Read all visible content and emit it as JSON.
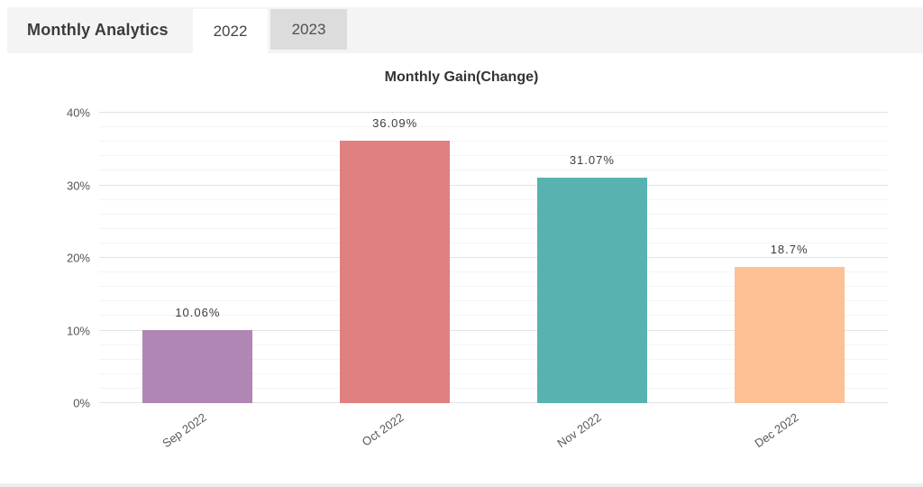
{
  "header": {
    "title": "Monthly Analytics",
    "tabs": [
      {
        "label": "2022",
        "active": true
      },
      {
        "label": "2023",
        "active": false
      }
    ]
  },
  "chart_data": {
    "type": "bar",
    "title": "Monthly Gain(Change)",
    "categories": [
      "Sep 2022",
      "Oct 2022",
      "Nov 2022",
      "Dec 2022"
    ],
    "values": [
      10.06,
      36.09,
      31.07,
      18.7
    ],
    "value_labels": [
      "10.06%",
      "36.09%",
      "31.07%",
      "18.7%"
    ],
    "bar_colors": [
      "#b086b4",
      "#e08081",
      "#58b3b0",
      "#fec095"
    ],
    "xlabel": "",
    "ylabel": "",
    "ylim": [
      0,
      40
    ],
    "y_ticks": [
      {
        "value": 0,
        "label": "0%"
      },
      {
        "value": 10,
        "label": "10%"
      },
      {
        "value": 20,
        "label": "20%"
      },
      {
        "value": 30,
        "label": "30%"
      },
      {
        "value": 40,
        "label": "40%"
      }
    ],
    "minor_grid_step": 2,
    "grid": true,
    "legend": false,
    "colors": {
      "major_grid": "#e3e3e3",
      "minor_grid": "#f4f4f4",
      "axis_text": "#555555",
      "data_label": "#3c3c3c"
    }
  }
}
